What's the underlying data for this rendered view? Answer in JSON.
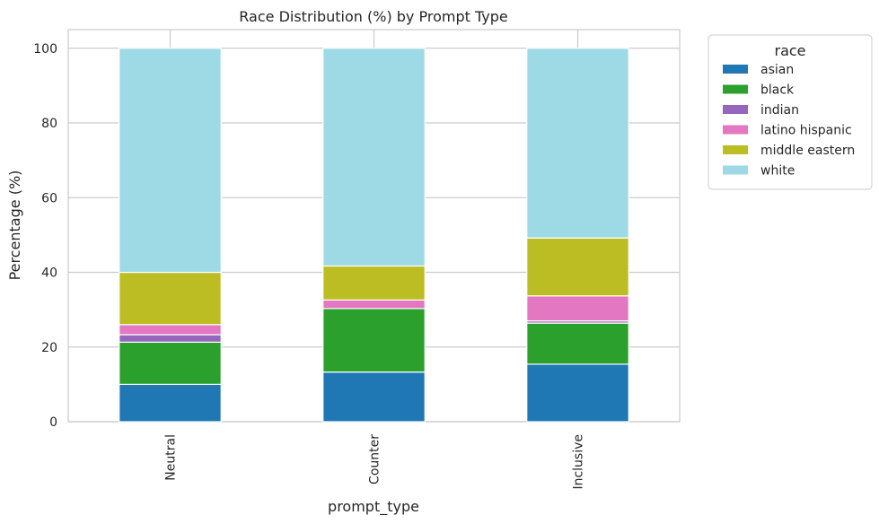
{
  "chart_data": {
    "type": "bar",
    "stacked": true,
    "title": "Race Distribution (%) by Prompt Type",
    "xlabel": "prompt_type",
    "ylabel": "Percentage (%)",
    "ylim": [
      0,
      105
    ],
    "yticks": [
      0,
      20,
      40,
      60,
      80,
      100
    ],
    "grid": true,
    "legend_title": "race",
    "legend_placement": "outside-top-right",
    "categories": [
      "Neutral",
      "Counter",
      "Inclusive"
    ],
    "series": [
      {
        "name": "asian",
        "color": "#1f77b4",
        "values": [
          10.0,
          13.3,
          15.4
        ]
      },
      {
        "name": "black",
        "color": "#2ca02c",
        "values": [
          11.3,
          17.0,
          11.0
        ]
      },
      {
        "name": "indian",
        "color": "#9467bd",
        "values": [
          2.0,
          0.0,
          0.6
        ]
      },
      {
        "name": "latino hispanic",
        "color": "#e377c2",
        "values": [
          2.7,
          2.3,
          6.7
        ]
      },
      {
        "name": "middle eastern",
        "color": "#bcbd22",
        "values": [
          14.0,
          9.1,
          15.5
        ]
      },
      {
        "name": "white",
        "color": "#9edae5",
        "values": [
          60.0,
          58.3,
          50.8
        ]
      }
    ]
  }
}
